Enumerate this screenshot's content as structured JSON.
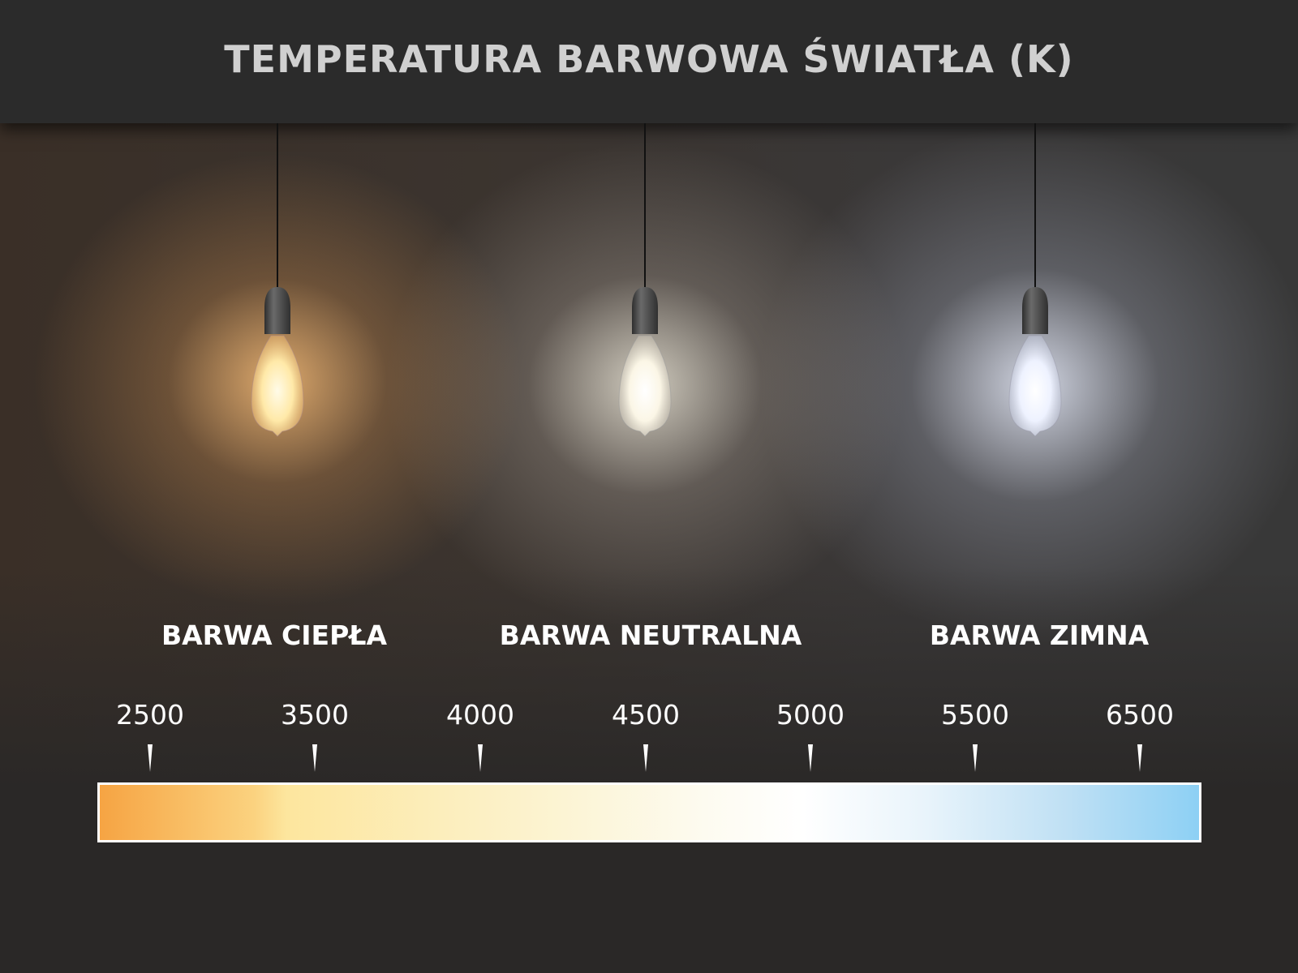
{
  "title": "TEMPERATURA BARWOWA ŚWIATŁA (K)",
  "categories": [
    {
      "label": "BARWA CIEPŁA",
      "glow_color": "#f8c07a"
    },
    {
      "label": "BARWA NEUTRALNA",
      "glow_color": "#f3efe2"
    },
    {
      "label": "BARWA ZIMNA",
      "glow_color": "#e8eeff"
    }
  ],
  "scale": {
    "unit": "K",
    "ticks": [
      "2500",
      "3500",
      "4000",
      "4500",
      "5000",
      "5500",
      "6500"
    ],
    "gradient_colors": [
      "#f6a443",
      "#fde69e",
      "#ffffff",
      "#8dd0f4"
    ]
  }
}
